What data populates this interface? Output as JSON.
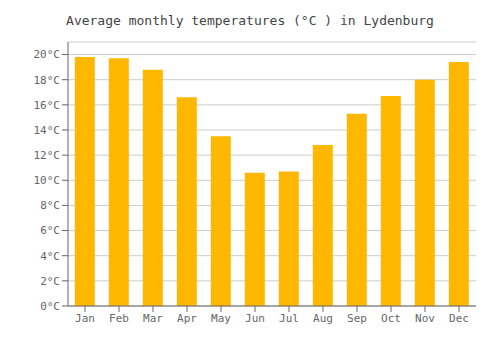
{
  "chart_data": {
    "type": "bar",
    "title": "Average monthly temperatures (°C ) in Lydenburg",
    "categories": [
      "Jan",
      "Feb",
      "Mar",
      "Apr",
      "May",
      "Jun",
      "Jul",
      "Aug",
      "Sep",
      "Oct",
      "Nov",
      "Dec"
    ],
    "values": [
      19.8,
      19.7,
      18.8,
      16.6,
      13.5,
      10.6,
      10.7,
      12.8,
      15.3,
      16.7,
      18.0,
      19.4
    ],
    "color": "#FFB700",
    "ylim": [
      0,
      21
    ],
    "yticks": [
      {
        "value": 0,
        "label": "0°C"
      },
      {
        "value": 2,
        "label": "2°C"
      },
      {
        "value": 4,
        "label": "4°C"
      },
      {
        "value": 6,
        "label": "6°C"
      },
      {
        "value": 8,
        "label": "8°C"
      },
      {
        "value": 10,
        "label": "10°C"
      },
      {
        "value": 12,
        "label": "12°C"
      },
      {
        "value": 14,
        "label": "14°C"
      },
      {
        "value": 16,
        "label": "16°C"
      },
      {
        "value": 18,
        "label": "18°C"
      },
      {
        "value": 20,
        "label": "20°C"
      }
    ],
    "grid": true
  }
}
